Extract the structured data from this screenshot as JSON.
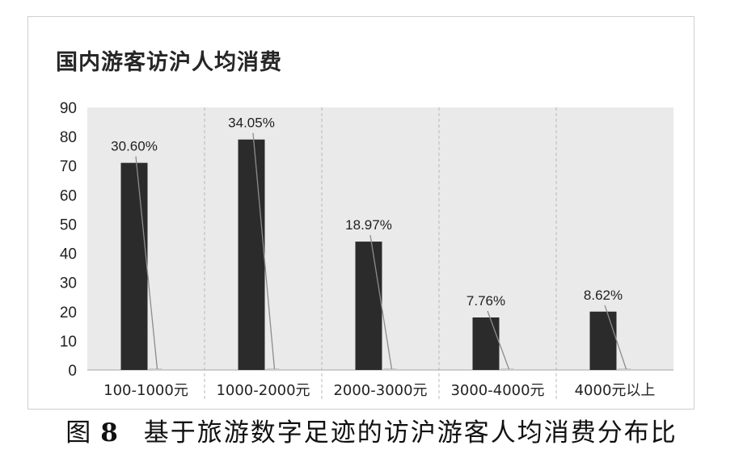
{
  "chart_data": {
    "type": "bar",
    "title": "国内游客访沪人均消费",
    "categories": [
      "100-1000元",
      "1000-2000元",
      "2000-3000元",
      "3000-4000元",
      "4000元以上"
    ],
    "values": [
      71,
      79,
      44,
      18,
      20
    ],
    "data_labels": [
      "30.60%",
      "34.05%",
      "18.97%",
      "7.76%",
      "8.62%"
    ],
    "ylim": [
      0,
      90
    ],
    "yticks": [
      0,
      10,
      20,
      30,
      40,
      50,
      60,
      70,
      80,
      90
    ],
    "grid": "vertical-dashed",
    "colors": {
      "bar": "#2b2b2b",
      "plot_bg": "#eaeaea",
      "leader": "#8c8c8c"
    }
  },
  "caption": {
    "prefix": "图",
    "number": "8",
    "text": "基于旅游数字足迹的访沪游客人均消费分布比"
  }
}
